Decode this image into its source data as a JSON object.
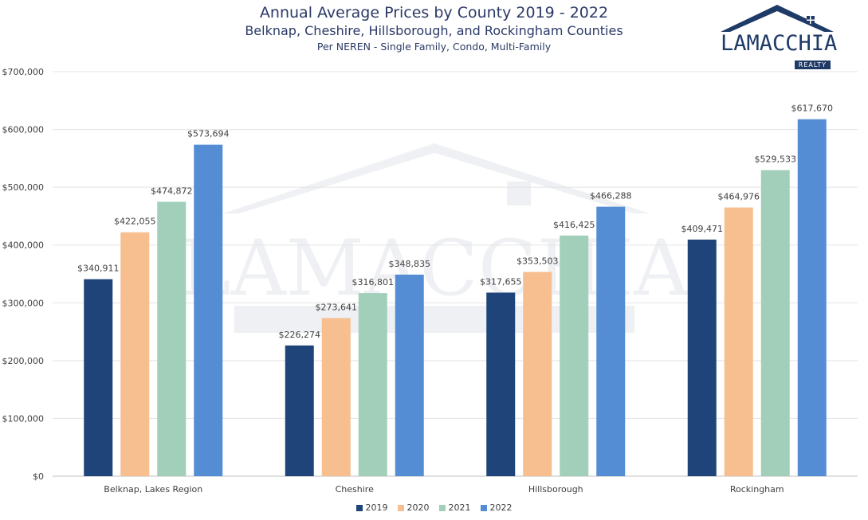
{
  "chart_data": {
    "type": "bar",
    "title": "Annual Average Prices by County 2019 - 2022",
    "subtitle": "Belknap, Cheshire, Hillsborough, and Rockingham Counties",
    "subtitle2": "Per NEREN - Single Family, Condo, Multi-Family",
    "categories": [
      "Belknap, Lakes Region",
      "Cheshire",
      "Hillsborough",
      "Rockingham"
    ],
    "series": [
      {
        "name": "2019",
        "color": "#1f4479",
        "values": [
          340911,
          226274,
          317655,
          409471
        ],
        "labels": [
          "$340,911",
          "$226,274",
          "$317,655",
          "$409,471"
        ]
      },
      {
        "name": "2020",
        "color": "#f7be8f",
        "values": [
          422055,
          273641,
          353503,
          464976
        ],
        "labels": [
          "$422,055",
          "$273,641",
          "$353,503",
          "$464,976"
        ]
      },
      {
        "name": "2021",
        "color": "#a1cfba",
        "values": [
          474872,
          316801,
          416425,
          529533
        ],
        "labels": [
          "$474,872",
          "$316,801",
          "$416,425",
          "$529,533"
        ]
      },
      {
        "name": "2022",
        "color": "#548dd4",
        "values": [
          573694,
          348835,
          466288,
          617670
        ],
        "labels": [
          "$573,694",
          "$348,835",
          "$466,288",
          "$617,670"
        ]
      }
    ],
    "ylim": [
      0,
      700000
    ],
    "yticks": [
      0,
      100000,
      200000,
      300000,
      400000,
      500000,
      600000,
      700000
    ],
    "ytick_labels": [
      "$0",
      "$100,000",
      "$200,000",
      "$300,000",
      "$400,000",
      "$500,000",
      "$600,000",
      "$700,000"
    ],
    "grid": true,
    "legend": "bottom"
  },
  "logo": {
    "name": "LAMACCHIA",
    "sub": "REALTY",
    "color": "#1e3a66",
    "icon": "house-roof-icon"
  }
}
